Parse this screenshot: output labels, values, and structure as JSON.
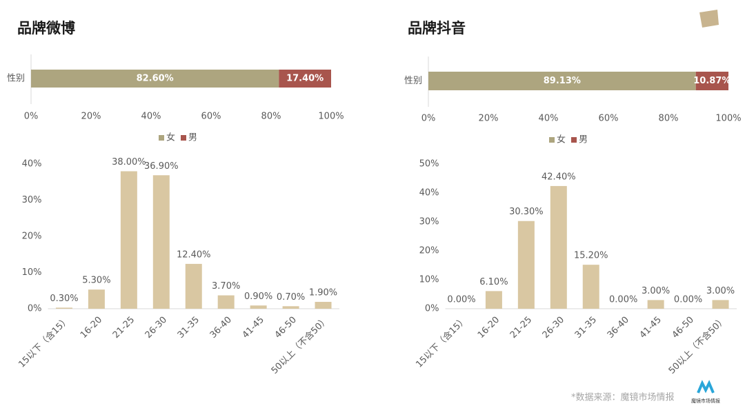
{
  "chart_data": [
    {
      "type": "stacked_bar",
      "title": "品牌微博",
      "categories": [
        "性别"
      ],
      "series": [
        {
          "name": "女",
          "color": "#ADA57F",
          "values": [
            82.6
          ],
          "value_labels": [
            "82.60%"
          ]
        },
        {
          "name": "男",
          "color": "#A8554D",
          "values": [
            17.4
          ],
          "value_labels": [
            "17.40%"
          ]
        }
      ],
      "xlim": [
        0,
        100
      ],
      "xticks": [
        {
          "value": 0,
          "label": "0%"
        },
        {
          "value": 20,
          "label": "20%"
        },
        {
          "value": 40,
          "label": "40%"
        },
        {
          "value": 60,
          "label": "60%"
        },
        {
          "value": 80,
          "label": "80%"
        },
        {
          "value": 100,
          "label": "100%"
        }
      ],
      "legend": "bottom"
    },
    {
      "type": "bar",
      "color": "#D9C7A2",
      "categories": [
        "15以下（含15）",
        "16-20",
        "21-25",
        "26-30",
        "31-35",
        "36-40",
        "41-45",
        "46-50",
        "50以上（不含50）"
      ],
      "values": [
        0.3,
        5.3,
        38,
        36.9,
        12.4,
        3.7,
        0.9,
        0.7,
        1.9
      ],
      "value_labels": [
        "0.30%",
        "5.30%",
        "38.00%",
        "36.90%",
        "12.40%",
        "3.70%",
        "0.90%",
        "0.70%",
        "1.90%"
      ],
      "ylim": [
        0,
        40
      ],
      "yticks": [
        {
          "value": 0,
          "label": "0%"
        },
        {
          "value": 10,
          "label": "10%"
        },
        {
          "value": 20,
          "label": "20%"
        },
        {
          "value": 30,
          "label": "30%"
        },
        {
          "value": 40,
          "label": "40%"
        }
      ]
    },
    {
      "type": "stacked_bar",
      "title": "品牌抖音",
      "categories": [
        "性别"
      ],
      "series": [
        {
          "name": "女",
          "color": "#ADA57F",
          "values": [
            89.13
          ],
          "value_labels": [
            "89.13%"
          ]
        },
        {
          "name": "男",
          "color": "#A8554D",
          "values": [
            10.87
          ],
          "value_labels": [
            "10.87%"
          ]
        }
      ],
      "xlim": [
        0,
        100
      ],
      "xticks": [
        {
          "value": 0,
          "label": "0%"
        },
        {
          "value": 20,
          "label": "20%"
        },
        {
          "value": 40,
          "label": "40%"
        },
        {
          "value": 60,
          "label": "60%"
        },
        {
          "value": 80,
          "label": "80%"
        },
        {
          "value": 100,
          "label": "100%"
        }
      ],
      "legend": "bottom"
    },
    {
      "type": "bar",
      "color": "#D9C7A2",
      "categories": [
        "15以下（含15）",
        "16-20",
        "21-25",
        "26-30",
        "31-35",
        "36-40",
        "41-45",
        "46-50",
        "50以上（不含50）"
      ],
      "values": [
        0,
        6.1,
        30.3,
        42.4,
        15.2,
        0,
        3,
        0,
        3
      ],
      "value_labels": [
        "0.00%",
        "6.10%",
        "30.30%",
        "42.40%",
        "15.20%",
        "0.00%",
        "3.00%",
        "0.00%",
        "3.00%"
      ],
      "ylim": [
        0,
        50
      ],
      "yticks": [
        {
          "value": 0,
          "label": "0%"
        },
        {
          "value": 10,
          "label": "10%"
        },
        {
          "value": 20,
          "label": "20%"
        },
        {
          "value": 30,
          "label": "30%"
        },
        {
          "value": 40,
          "label": "40%"
        },
        {
          "value": 50,
          "label": "50%"
        }
      ]
    }
  ],
  "source": "*数据来源：魔镜市场情报",
  "logo_text": "魔镜市场情报"
}
